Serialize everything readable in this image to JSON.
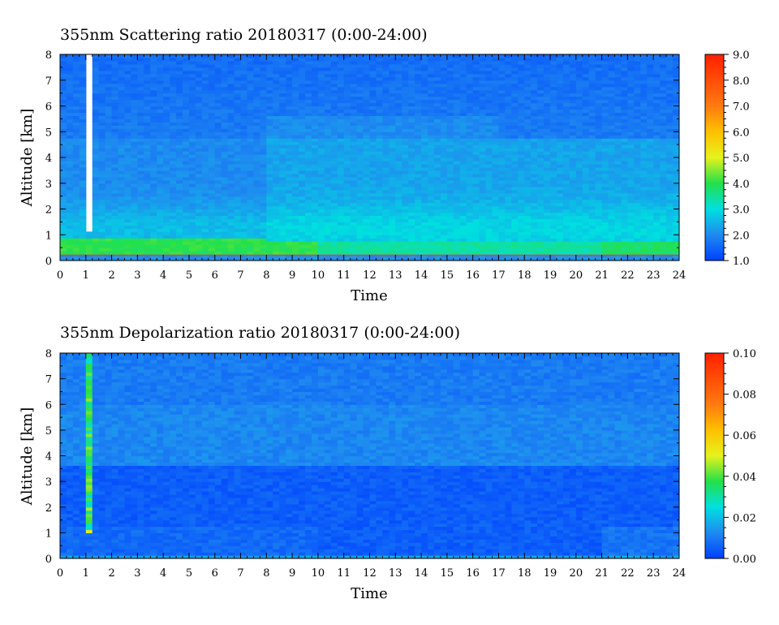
{
  "chart_data": [
    {
      "type": "heatmap",
      "title": "355nm Scattering ratio  20180317 (0:00-24:00)",
      "xlabel": "Time",
      "ylabel": "Altitude [km]",
      "xlim": [
        0,
        24
      ],
      "ylim": [
        0,
        8
      ],
      "x_ticks": [
        0,
        1,
        2,
        3,
        4,
        5,
        6,
        7,
        8,
        9,
        10,
        11,
        12,
        13,
        14,
        15,
        16,
        17,
        18,
        19,
        20,
        21,
        22,
        23,
        24
      ],
      "y_ticks": [
        0,
        1,
        2,
        3,
        4,
        5,
        6,
        7,
        8
      ],
      "colorbar": {
        "min": 1.0,
        "max": 9.0,
        "tick_labels": [
          "1.0",
          "2.0",
          "3.0",
          "4.0",
          "5.0",
          "6.0",
          "7.0",
          "8.0",
          "9.0"
        ]
      },
      "features": {
        "boundary_layer_km": [
          0.3,
          1.0
        ],
        "boundary_layer_value": 4.0,
        "free_troposphere_value": 2.0,
        "upper_value": 1.8,
        "near_ground_line_km": 0.2,
        "missing_data_time_hours": [
          1.0,
          1.2
        ]
      }
    },
    {
      "type": "heatmap",
      "title": "355nm Depolarization ratio  20180317 (0:00-24:00)",
      "xlabel": "Time",
      "ylabel": "Altitude [km]",
      "xlim": [
        0,
        24
      ],
      "ylim": [
        0,
        8
      ],
      "x_ticks": [
        0,
        1,
        2,
        3,
        4,
        5,
        6,
        7,
        8,
        9,
        10,
        11,
        12,
        13,
        14,
        15,
        16,
        17,
        18,
        19,
        20,
        21,
        22,
        23,
        24
      ],
      "y_ticks": [
        0,
        1,
        2,
        3,
        4,
        5,
        6,
        7,
        8
      ],
      "colorbar": {
        "min": 0.0,
        "max": 0.1,
        "tick_labels": [
          "0.00",
          "0.02",
          "0.04",
          "0.06",
          "0.08",
          "0.10"
        ]
      },
      "features": {
        "lower_value": 0.005,
        "upper_value": 0.012,
        "cloud_column_time_hours": 1.1
      }
    }
  ]
}
